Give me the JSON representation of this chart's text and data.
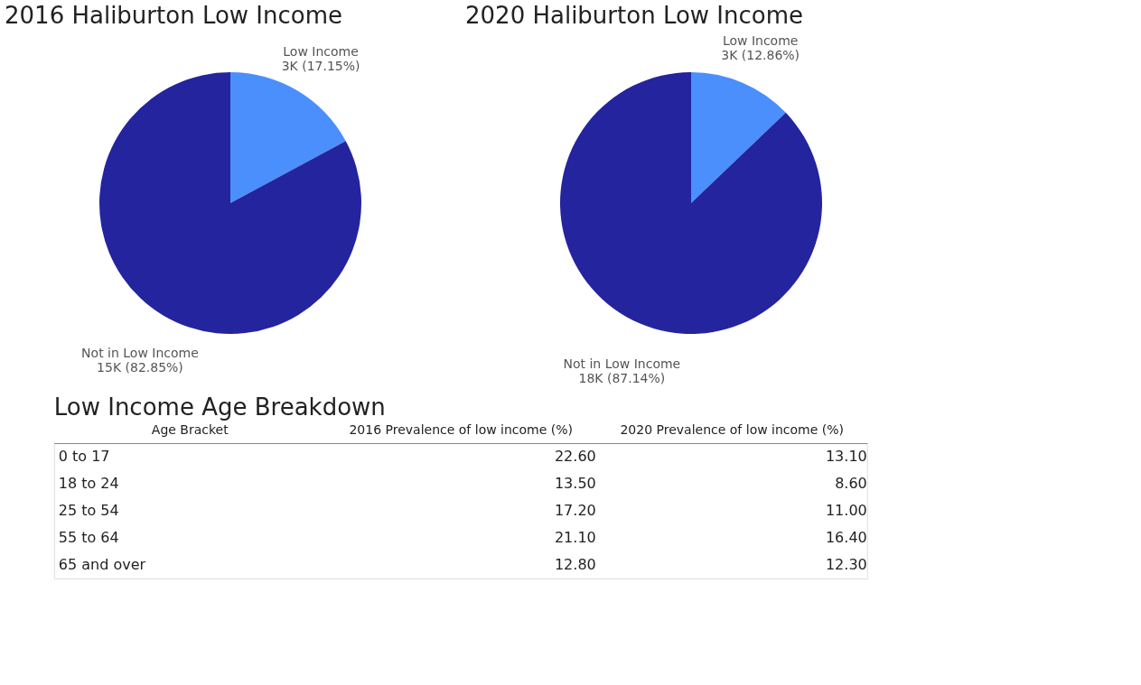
{
  "chart_data": [
    {
      "type": "pie",
      "title": "2016 Haliburton Low Income",
      "categories": [
        "Low Income",
        "Not in Low Income"
      ],
      "values": [
        17.15,
        82.85
      ],
      "colors": [
        "#4a8ffc",
        "#23249e"
      ],
      "value_labels": [
        "3K (17.15%)",
        "15K (82.85%)"
      ],
      "legend": false
    },
    {
      "type": "pie",
      "title": "2020 Haliburton Low Income",
      "categories": [
        "Low Income",
        "Not in Low Income"
      ],
      "values": [
        12.86,
        87.14
      ],
      "colors": [
        "#4a8ffc",
        "#23249e"
      ],
      "value_labels": [
        "3K (12.86%)",
        "18K (87.14%)"
      ],
      "legend": false
    },
    {
      "type": "other",
      "title": "Low Income Age Breakdown",
      "xlabel": "Age Bracket",
      "categories": [
        "0 to 17",
        "18 to 24",
        "25 to 54",
        "55 to 64",
        "65 and over"
      ],
      "series": [
        {
          "name": "2016 Prevalence of low income (%)",
          "color": "#222222",
          "values": [
            22.6,
            13.5,
            17.2,
            21.1,
            12.8
          ],
          "value_labels": [
            "22.60",
            "13.50",
            "17.20",
            "21.10",
            "12.80"
          ]
        },
        {
          "name": "2020 Prevalence of low income (%)",
          "color": "#222222",
          "values": [
            13.1,
            8.6,
            11.0,
            16.4,
            12.3
          ],
          "value_labels": [
            "13.10",
            "8.60",
            "11.00",
            "16.40",
            "12.30"
          ]
        }
      ]
    }
  ]
}
